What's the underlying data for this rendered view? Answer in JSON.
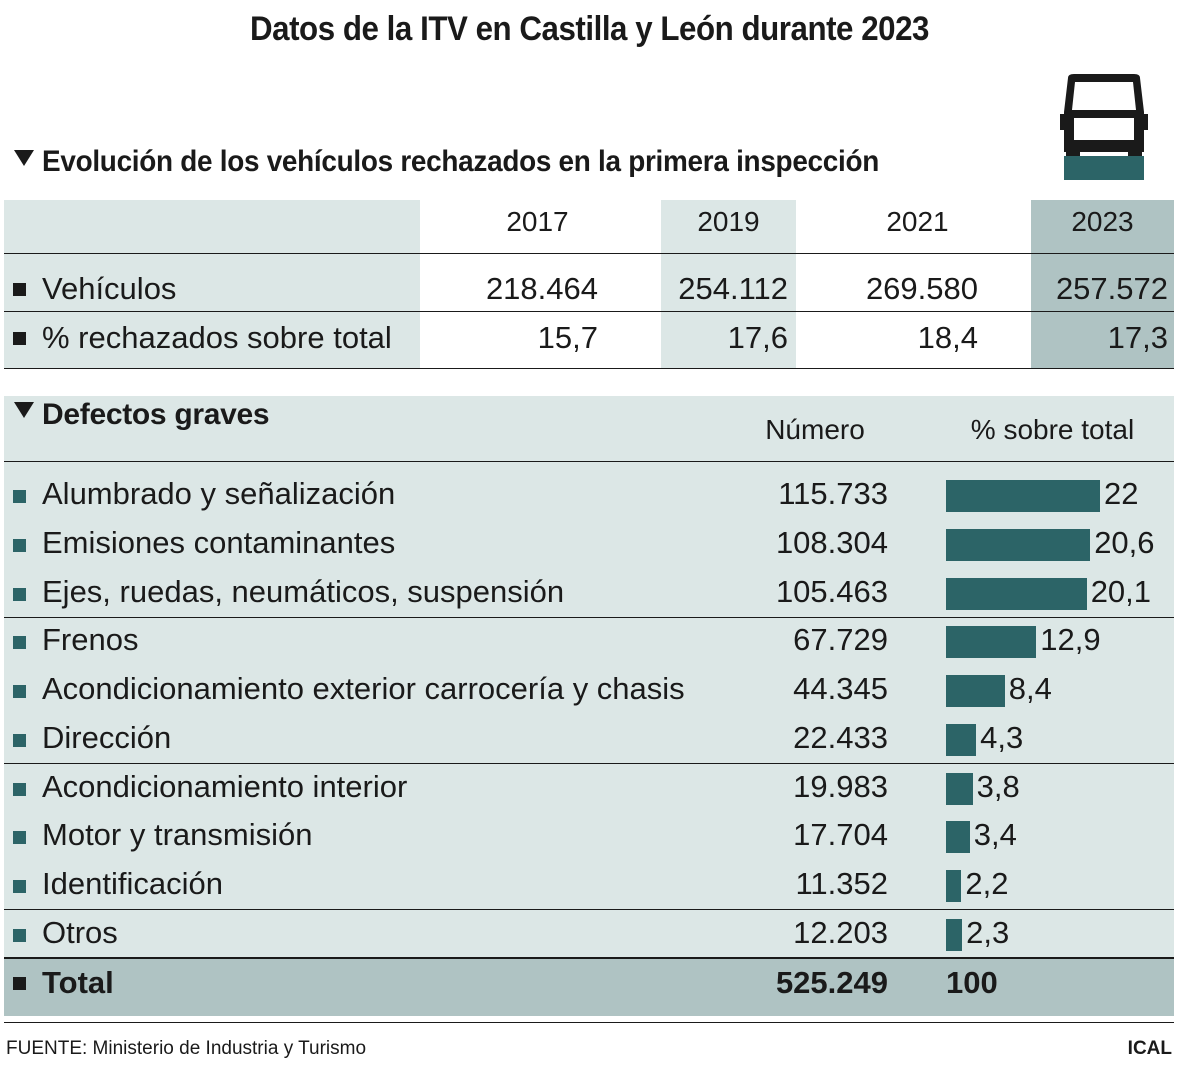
{
  "title": "Datos de la ITV en Castilla y León durante 2023",
  "colors": {
    "bar": "#2c6467",
    "light_bg": "#dce7e6",
    "highlight_bg": "#afc3c3"
  },
  "icon": "car-front-icon",
  "section1": {
    "title": "Evolución de los vehículos rechazados en la primera inspección",
    "years": [
      "2017",
      "2019",
      "2021",
      "2023"
    ],
    "rows": [
      {
        "label": "Vehículos",
        "values": [
          "218.464",
          "254.112",
          "269.580",
          "257.572"
        ]
      },
      {
        "label": "% rechazados sobre total",
        "values": [
          "15,7",
          "17,6",
          "18,4",
          "17,3"
        ]
      }
    ]
  },
  "section2": {
    "title": "Defectos graves",
    "col_number": "Número",
    "col_pct": "% sobre total",
    "total_label": "Total",
    "total_number": "525.249",
    "total_pct": "100"
  },
  "chart_data": {
    "type": "bar",
    "categories": [
      "Alumbrado y señalización",
      "Emisiones contaminantes",
      "Ejes, ruedas, neumáticos, suspensión",
      "Frenos",
      "Acondicionamiento exterior carrocería y chasis",
      "Dirección",
      "Acondicionamiento interior",
      "Motor y transmisión",
      "Identificación",
      "Otros"
    ],
    "numbers": [
      "115.733",
      "108.304",
      "105.463",
      "67.729",
      "44.345",
      "22.433",
      "19.983",
      "17.704",
      "11.352",
      "12.203"
    ],
    "values": [
      22,
      20.6,
      20.1,
      12.9,
      8.4,
      4.3,
      3.8,
      3.4,
      2.2,
      2.3
    ],
    "value_labels": [
      "22",
      "20,6",
      "20,1",
      "12,9",
      "8,4",
      "4,3",
      "3,8",
      "3,4",
      "2,2",
      "2,3"
    ]
  },
  "footer": {
    "source": "FUENTE: Ministerio de Industria y Turismo",
    "credit": "ICAL"
  }
}
